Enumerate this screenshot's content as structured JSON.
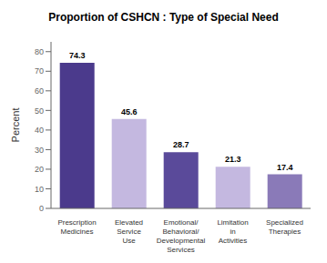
{
  "chart_data": {
    "type": "bar",
    "title": "Proportion of CSHCN : Type of Special Need",
    "categories": [
      "Prescription\nMedicines",
      "Elevated\nService\nUse",
      "Emotional/\nBehavioral/\nDevelopmental\nServices",
      "Limitation\nin\nActivities",
      "Specialized\nTherapies"
    ],
    "values": [
      74.3,
      45.6,
      28.7,
      21.3,
      17.4
    ],
    "colors": [
      "#4b3a8c",
      "#c4b8e0",
      "#5a4a9a",
      "#c4b8e0",
      "#8a7ab8"
    ],
    "ylabel": "Percent",
    "ylim": [
      0,
      85
    ],
    "yticks": [
      0,
      10,
      20,
      30,
      40,
      50,
      60,
      70,
      80
    ],
    "grid": false,
    "data_labels": true
  }
}
